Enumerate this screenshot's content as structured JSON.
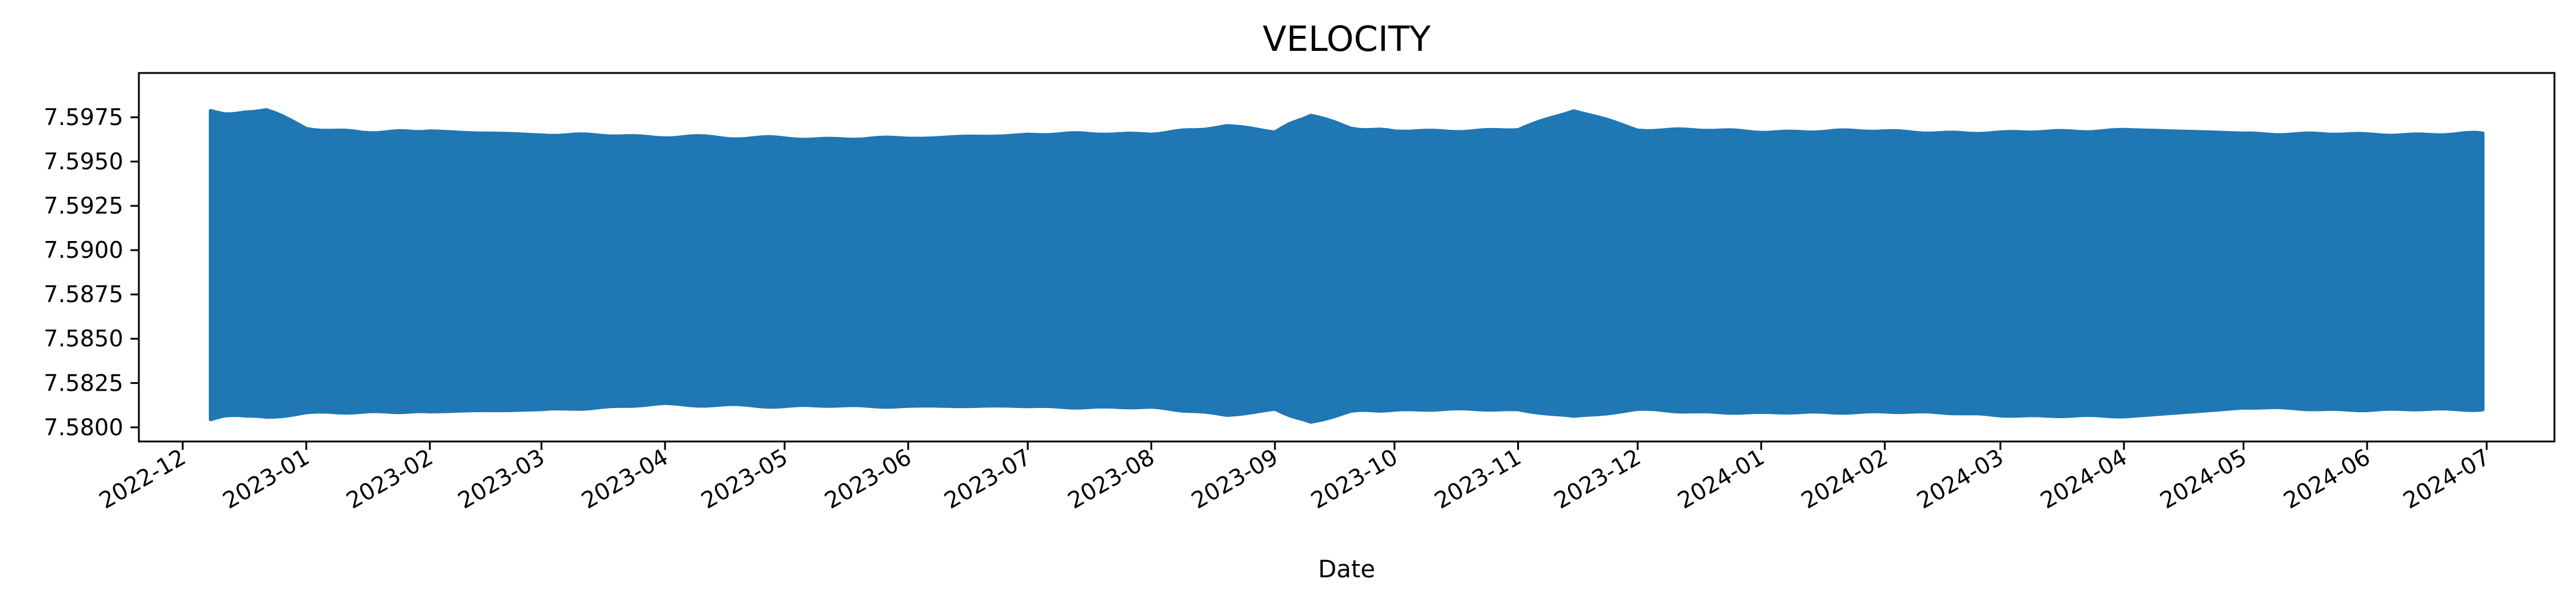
{
  "chart_data": {
    "type": "line",
    "title": "VELOCITY",
    "xlabel": "Date",
    "ylabel": "",
    "x_range": [
      "2022-12-08",
      "2024-06-30"
    ],
    "xlim": [
      "2022-11-20",
      "2024-07-18"
    ],
    "ylim": [
      7.5792,
      7.6
    ],
    "y_ticks": [
      7.58,
      7.5825,
      7.585,
      7.5875,
      7.59,
      7.5925,
      7.595,
      7.5975
    ],
    "y_tick_labels": [
      "7.5800",
      "7.5825",
      "7.5850",
      "7.5875",
      "7.5900",
      "7.5925",
      "7.5950",
      "7.5975"
    ],
    "x_ticks": [
      "2022-12-01",
      "2023-01-01",
      "2023-02-01",
      "2023-03-01",
      "2023-04-01",
      "2023-05-01",
      "2023-06-01",
      "2023-07-01",
      "2023-08-01",
      "2023-09-01",
      "2023-10-01",
      "2023-11-01",
      "2023-12-01",
      "2024-01-01",
      "2024-02-01",
      "2024-03-01",
      "2024-04-01",
      "2024-05-01",
      "2024-06-01",
      "2024-07-01"
    ],
    "x_tick_labels": [
      "2022-12",
      "2023-01",
      "2023-02",
      "2023-03",
      "2023-04",
      "2023-05",
      "2023-06",
      "2023-07",
      "2023-08",
      "2023-09",
      "2023-10",
      "2023-11",
      "2023-12",
      "2024-01",
      "2024-02",
      "2024-03",
      "2024-04",
      "2024-05",
      "2024-06",
      "2024-07"
    ],
    "grid": false,
    "legend": "none",
    "series": [
      {
        "color": "#1f77b4",
        "envelope": {
          "dates": [
            "2022-12-08",
            "2022-12-15",
            "2022-12-22",
            "2023-01-01",
            "2023-01-15",
            "2023-02-01",
            "2023-03-01",
            "2023-04-01",
            "2023-05-01",
            "2023-06-01",
            "2023-07-01",
            "2023-08-01",
            "2023-08-20",
            "2023-09-01",
            "2023-09-10",
            "2023-09-20",
            "2023-10-01",
            "2023-11-01",
            "2023-11-15",
            "2023-12-01",
            "2024-01-01",
            "2024-02-01",
            "2024-03-01",
            "2024-04-01",
            "2024-05-01",
            "2024-06-01",
            "2024-06-30"
          ],
          "upper": [
            7.5978,
            7.5977,
            7.5979,
            7.5969,
            7.5966,
            7.5967,
            7.5965,
            7.5964,
            7.5963,
            7.5963,
            7.5965,
            7.5966,
            7.597,
            7.5967,
            7.5976,
            7.5969,
            7.5967,
            7.5968,
            7.5979,
            7.5968,
            7.5967,
            7.5967,
            7.5966,
            7.5968,
            7.5966,
            7.5965,
            7.5966
          ],
          "lower": [
            7.5805,
            7.5807,
            7.5806,
            7.5808,
            7.5809,
            7.5809,
            7.581,
            7.5813,
            7.5812,
            7.5812,
            7.5812,
            7.5811,
            7.5807,
            7.581,
            7.5803,
            7.5809,
            7.581,
            7.581,
            7.5806,
            7.581,
            7.5808,
            7.5809,
            7.5807,
            7.5806,
            7.5811,
            7.581,
            7.581
          ]
        }
      }
    ]
  }
}
